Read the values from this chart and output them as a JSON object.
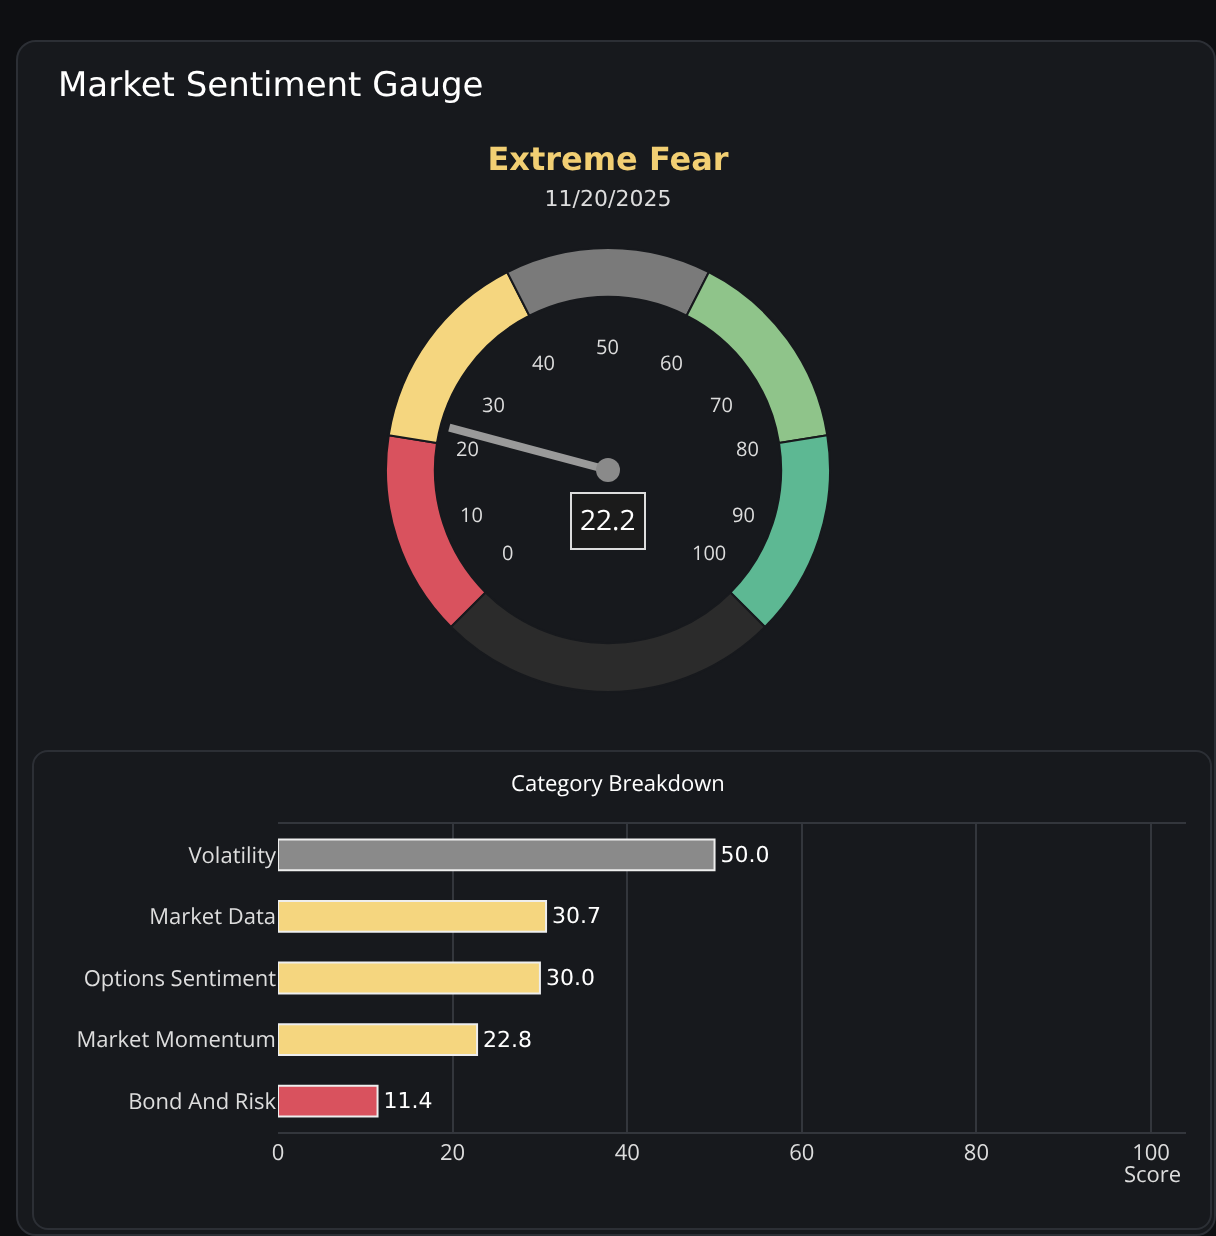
{
  "chart_data": [
    {
      "type": "donut",
      "title": "Market Sentiment Gauge",
      "subtitle": "Extreme Fear",
      "categories": [
        null,
        null,
        null,
        null,
        null,
        null
      ],
      "values": [
        15,
        15,
        15,
        15,
        15,
        25
      ],
      "colors": [
        "#d9525e",
        "#f5d67f",
        "#7a7a7a",
        "#8fc48a",
        "#5db893",
        "#2b2b2b"
      ],
      "annotations": [
        "11/20/2025",
        "22.2",
        "0",
        "10",
        "20",
        "30",
        "40",
        "50",
        "60",
        "70",
        "80",
        "90",
        "100"
      ]
    },
    {
      "type": "bar",
      "orientation": "horizontal",
      "title": "Category Breakdown",
      "xlabel": "Score",
      "categories": [
        "Volatility",
        "Market Data",
        "Options Sentiment",
        "Market Momentum",
        "Bond And Risk"
      ],
      "values": [
        50.0,
        30.7,
        30.0,
        22.8,
        11.4
      ],
      "value_labels": [
        "50.0",
        "30.7",
        "30.0",
        "22.8",
        "11.4"
      ],
      "colors": [
        "#8a8a8a",
        "#f5d67f",
        "#f5d67f",
        "#f5d67f",
        "#d9525e"
      ],
      "xlim": [
        0,
        104
      ],
      "xticks": [
        0,
        20,
        40,
        60,
        80,
        100
      ],
      "grid": "x"
    }
  ]
}
